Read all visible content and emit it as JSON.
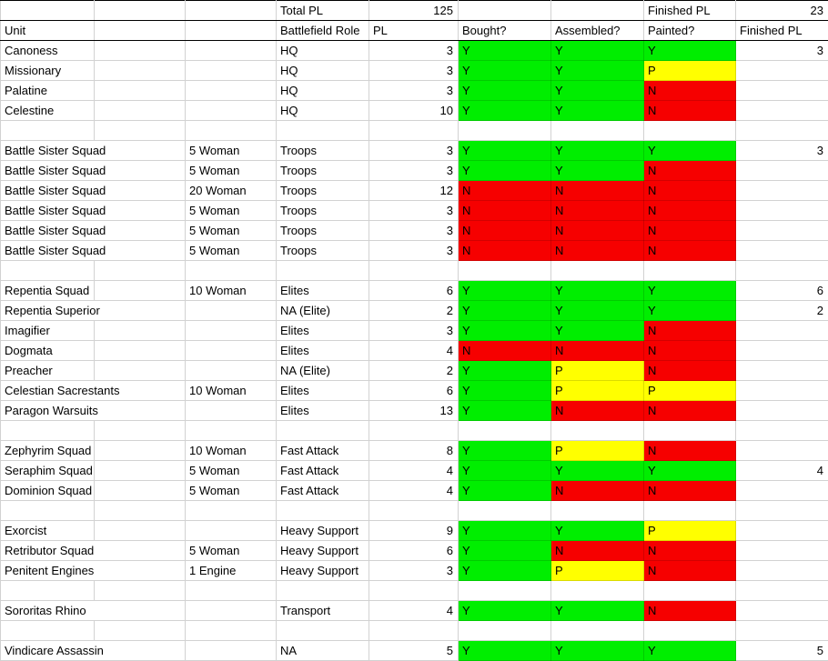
{
  "totals": {
    "total_pl_label": "Total PL",
    "total_pl_value": "125",
    "finished_pl_label": "Finished PL",
    "finished_pl_value": "23"
  },
  "headers": {
    "unit": "Unit",
    "role": "Battlefield Role",
    "pl": "PL",
    "bought": "Bought?",
    "assembled": "Assembled?",
    "painted": "Painted?",
    "finished": "Finished PL"
  },
  "colors": {
    "green": "#00ee00",
    "yellow": "#ffff00",
    "red": "#f60000",
    "gridline": "#d2d2d2",
    "header_border": "#000000"
  },
  "rows": [
    {
      "unit": "Canoness",
      "qty": "",
      "role": "HQ",
      "pl": "3",
      "bought": [
        "Y",
        "green"
      ],
      "assembled": [
        "Y",
        "green"
      ],
      "painted": [
        "Y",
        "green"
      ],
      "finished": "3",
      "wide": false
    },
    {
      "unit": "Missionary",
      "qty": "",
      "role": "HQ",
      "pl": "3",
      "bought": [
        "Y",
        "green"
      ],
      "assembled": [
        "Y",
        "green"
      ],
      "painted": [
        "P",
        "yellow"
      ],
      "finished": "",
      "wide": false
    },
    {
      "unit": "Palatine",
      "qty": "",
      "role": "HQ",
      "pl": "3",
      "bought": [
        "Y",
        "green"
      ],
      "assembled": [
        "Y",
        "green"
      ],
      "painted": [
        "N",
        "red"
      ],
      "finished": "",
      "wide": false
    },
    {
      "unit": "Celestine",
      "qty": "",
      "role": "HQ",
      "pl": "10",
      "bought": [
        "Y",
        "green"
      ],
      "assembled": [
        "Y",
        "green"
      ],
      "painted": [
        "N",
        "red"
      ],
      "finished": "",
      "wide": false
    },
    {
      "blank": true
    },
    {
      "unit": "Battle Sister Squad",
      "qty": "5 Woman",
      "role": "Troops",
      "pl": "3",
      "bought": [
        "Y",
        "green"
      ],
      "assembled": [
        "Y",
        "green"
      ],
      "painted": [
        "Y",
        "green"
      ],
      "finished": "3",
      "wide": true
    },
    {
      "unit": "Battle Sister Squad",
      "qty": "5 Woman",
      "role": "Troops",
      "pl": "3",
      "bought": [
        "Y",
        "green"
      ],
      "assembled": [
        "Y",
        "green"
      ],
      "painted": [
        "N",
        "red"
      ],
      "finished": "",
      "wide": true
    },
    {
      "unit": "Battle Sister Squad",
      "qty": "20 Woman",
      "role": "Troops",
      "pl": "12",
      "bought": [
        "N",
        "red"
      ],
      "assembled": [
        "N",
        "red"
      ],
      "painted": [
        "N",
        "red"
      ],
      "finished": "",
      "wide": true
    },
    {
      "unit": "Battle Sister Squad",
      "qty": "5 Woman",
      "role": "Troops",
      "pl": "3",
      "bought": [
        "N",
        "red"
      ],
      "assembled": [
        "N",
        "red"
      ],
      "painted": [
        "N",
        "red"
      ],
      "finished": "",
      "wide": true
    },
    {
      "unit": "Battle Sister Squad",
      "qty": "5 Woman",
      "role": "Troops",
      "pl": "3",
      "bought": [
        "N",
        "red"
      ],
      "assembled": [
        "N",
        "red"
      ],
      "painted": [
        "N",
        "red"
      ],
      "finished": "",
      "wide": true
    },
    {
      "unit": "Battle Sister Squad",
      "qty": "5 Woman",
      "role": "Troops",
      "pl": "3",
      "bought": [
        "N",
        "red"
      ],
      "assembled": [
        "N",
        "red"
      ],
      "painted": [
        "N",
        "red"
      ],
      "finished": "",
      "wide": true
    },
    {
      "blank": true
    },
    {
      "unit": "Repentia Squad",
      "qty": "10 Woman",
      "role": "Elites",
      "pl": "6",
      "bought": [
        "Y",
        "green"
      ],
      "assembled": [
        "Y",
        "green"
      ],
      "painted": [
        "Y",
        "green"
      ],
      "finished": "6",
      "wide": false
    },
    {
      "unit": "Repentia Superior",
      "qty": "",
      "role": "NA (Elite)",
      "pl": "2",
      "bought": [
        "Y",
        "green"
      ],
      "assembled": [
        "Y",
        "green"
      ],
      "painted": [
        "Y",
        "green"
      ],
      "finished": "2",
      "wide": true
    },
    {
      "unit": "Imagifier",
      "qty": "",
      "role": "Elites",
      "pl": "3",
      "bought": [
        "Y",
        "green"
      ],
      "assembled": [
        "Y",
        "green"
      ],
      "painted": [
        "N",
        "red"
      ],
      "finished": "",
      "wide": false
    },
    {
      "unit": "Dogmata",
      "qty": "",
      "role": "Elites",
      "pl": "4",
      "bought": [
        "N",
        "red"
      ],
      "assembled": [
        "N",
        "red"
      ],
      "painted": [
        "N",
        "red"
      ],
      "finished": "",
      "wide": false
    },
    {
      "unit": "Preacher",
      "qty": "",
      "role": "NA (Elite)",
      "pl": "2",
      "bought": [
        "Y",
        "green"
      ],
      "assembled": [
        "P",
        "yellow"
      ],
      "painted": [
        "N",
        "red"
      ],
      "finished": "",
      "wide": false
    },
    {
      "unit": "Celestian Sacrestants",
      "qty": "10 Woman",
      "role": "Elites",
      "pl": "6",
      "bought": [
        "Y",
        "green"
      ],
      "assembled": [
        "P",
        "yellow"
      ],
      "painted": [
        "P",
        "yellow"
      ],
      "finished": "",
      "wide": true
    },
    {
      "unit": "Paragon Warsuits",
      "qty": "",
      "role": "Elites",
      "pl": "13",
      "bought": [
        "Y",
        "green"
      ],
      "assembled": [
        "N",
        "red"
      ],
      "painted": [
        "N",
        "red"
      ],
      "finished": "",
      "wide": true
    },
    {
      "blank": true
    },
    {
      "unit": "Zephyrim Squad",
      "qty": "10 Woman",
      "role": "Fast Attack",
      "pl": "8",
      "bought": [
        "Y",
        "green"
      ],
      "assembled": [
        "P",
        "yellow"
      ],
      "painted": [
        "N",
        "red"
      ],
      "finished": "",
      "wide": false
    },
    {
      "unit": "Seraphim Squad",
      "qty": "5 Woman",
      "role": "Fast Attack",
      "pl": "4",
      "bought": [
        "Y",
        "green"
      ],
      "assembled": [
        "Y",
        "green"
      ],
      "painted": [
        "Y",
        "green"
      ],
      "finished": "4",
      "wide": false
    },
    {
      "unit": "Dominion Squad",
      "qty": "5 Woman",
      "role": "Fast Attack",
      "pl": "4",
      "bought": [
        "Y",
        "green"
      ],
      "assembled": [
        "N",
        "red"
      ],
      "painted": [
        "N",
        "red"
      ],
      "finished": "",
      "wide": false
    },
    {
      "blank": true
    },
    {
      "unit": "Exorcist",
      "qty": "",
      "role": "Heavy Support",
      "pl": "9",
      "bought": [
        "Y",
        "green"
      ],
      "assembled": [
        "Y",
        "green"
      ],
      "painted": [
        "P",
        "yellow"
      ],
      "finished": "",
      "wide": false
    },
    {
      "unit": "Retributor Squad",
      "qty": "5 Woman",
      "role": "Heavy Support",
      "pl": "6",
      "bought": [
        "Y",
        "green"
      ],
      "assembled": [
        "N",
        "red"
      ],
      "painted": [
        "N",
        "red"
      ],
      "finished": "",
      "wide": true
    },
    {
      "unit": "Penitent Engines",
      "qty": "1 Engine",
      "role": "Heavy Support",
      "pl": "3",
      "bought": [
        "Y",
        "green"
      ],
      "assembled": [
        "P",
        "yellow"
      ],
      "painted": [
        "N",
        "red"
      ],
      "finished": "",
      "wide": true
    },
    {
      "blank": true
    },
    {
      "unit": "Sororitas Rhino",
      "qty": "",
      "role": "Transport",
      "pl": "4",
      "bought": [
        "Y",
        "green"
      ],
      "assembled": [
        "Y",
        "green"
      ],
      "painted": [
        "N",
        "red"
      ],
      "finished": "",
      "wide": true
    },
    {
      "blank": true
    },
    {
      "unit": "Vindicare Assassin",
      "qty": "",
      "role": "NA",
      "pl": "5",
      "bought": [
        "Y",
        "green"
      ],
      "assembled": [
        "Y",
        "green"
      ],
      "painted": [
        "Y",
        "green"
      ],
      "finished": "5",
      "wide": true
    }
  ]
}
